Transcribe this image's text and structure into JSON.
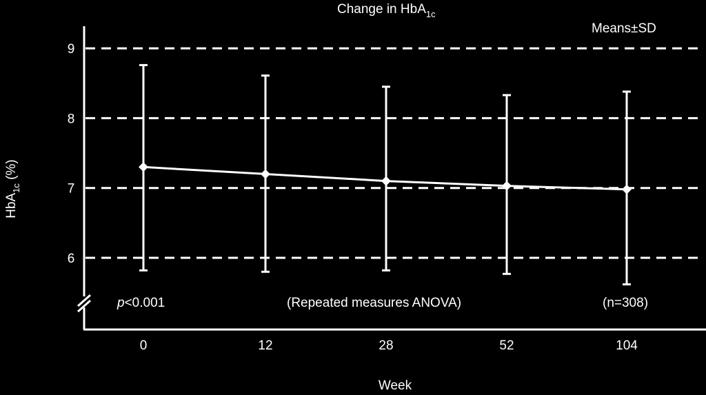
{
  "chart_data": {
    "type": "line",
    "title": "Change in HbA",
    "title_subscript": "1c",
    "legend_note": "Means",
    "legend_note_pm": "±",
    "legend_note_tail": "SD",
    "xlabel": "Week",
    "ylabel_main": "HbA",
    "ylabel_sub": "1c",
    "ylabel_unit": " (%)",
    "categories": [
      "0",
      "12",
      "28",
      "52",
      "104"
    ],
    "series": [
      {
        "means": [
          7.3,
          7.2,
          7.1,
          7.03,
          6.98
        ],
        "upper": [
          8.76,
          8.61,
          8.45,
          8.33,
          8.38
        ],
        "lower": [
          5.82,
          5.8,
          5.82,
          5.77,
          5.62
        ]
      }
    ],
    "yticks": [
      "6",
      "7",
      "8",
      "9"
    ],
    "ylim": [
      5.4,
      9.4
    ],
    "grid": "dashed horizontal at 6, 7, 8, 9",
    "axis_break": true,
    "annotations": {
      "p_letter": "p",
      "p_value": "<0.001",
      "test": "(Repeated measures ANOVA)",
      "n": "(n=308)"
    },
    "colors": {
      "background": "#000000",
      "foreground": "#ffffff"
    }
  }
}
